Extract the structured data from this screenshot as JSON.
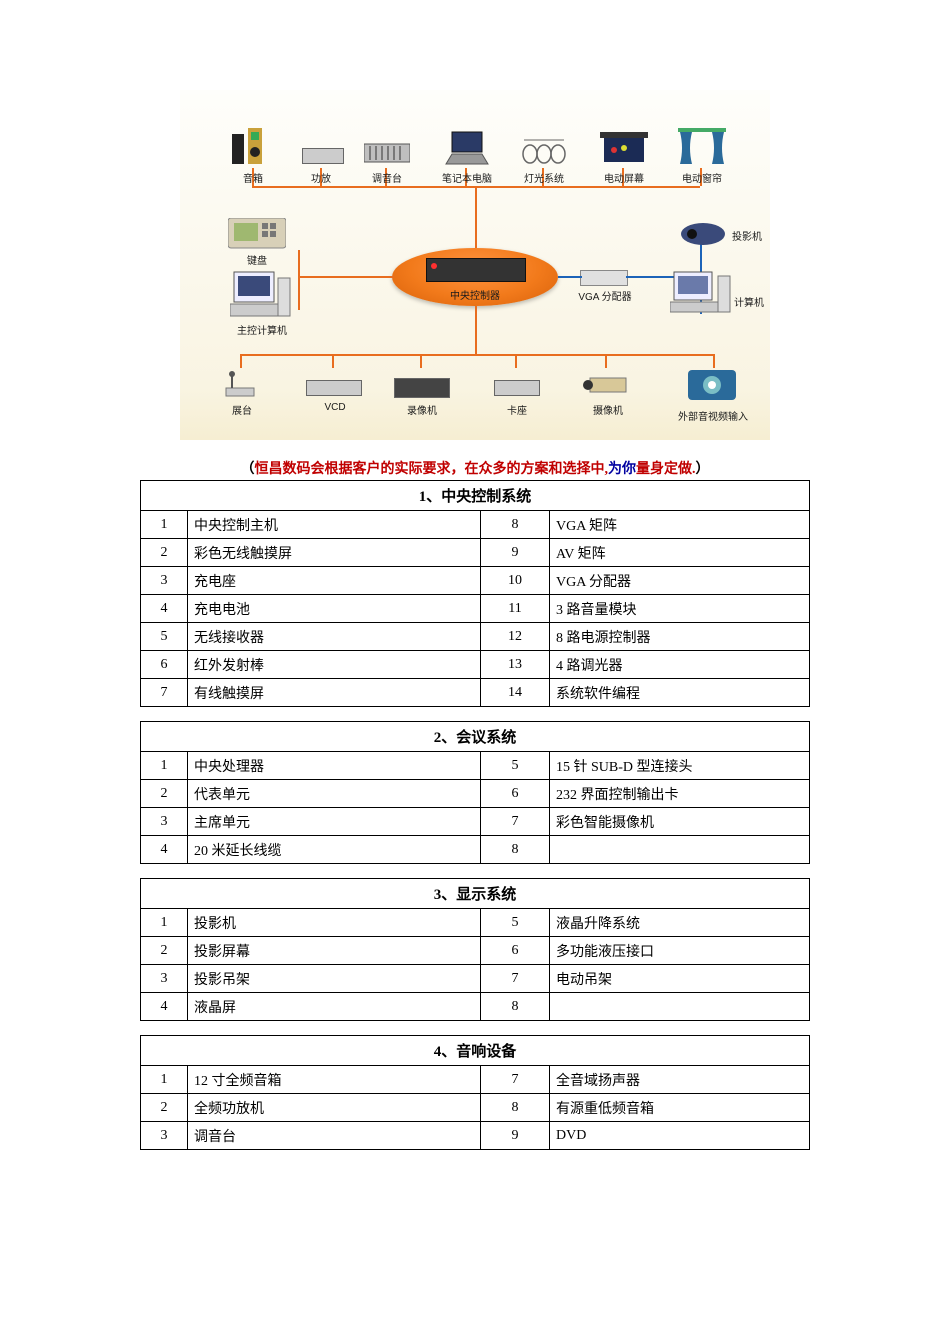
{
  "diagram": {
    "background_gradient": [
      "#fefefb",
      "#f9f4e2",
      "#f6eed2"
    ],
    "line_color_orange": "#e86d1f",
    "line_color_blue": "#1c63b8",
    "label_font_size": 10,
    "center": {
      "label": "中央控制器",
      "fill_gradient": [
        "#ff9441",
        "#f27a1b",
        "#d8610a"
      ]
    },
    "vga_label": "VGA 分配器",
    "top_row": [
      {
        "label": "音箱"
      },
      {
        "label": "功放"
      },
      {
        "label": "调音台"
      },
      {
        "label": "笔记本电脑"
      },
      {
        "label": "灯光系统"
      },
      {
        "label": "电动屏幕"
      },
      {
        "label": "电动窗帘"
      }
    ],
    "left_col": [
      {
        "label": "键盘"
      },
      {
        "label": "主控计算机"
      }
    ],
    "right_col": [
      {
        "label": "投影机"
      },
      {
        "label": "计算机"
      }
    ],
    "bottom_row": [
      {
        "label": "展台"
      },
      {
        "label": "VCD"
      },
      {
        "label": "录像机"
      },
      {
        "label": "卡座"
      },
      {
        "label": "摄像机"
      },
      {
        "label": "外部音视频输入"
      }
    ]
  },
  "slogan": {
    "open": "（",
    "red1": "恒昌数码会根据客户的实际要求，在众多的方案和选择中",
    "mid_punct": ",",
    "blue": "为你",
    "red2": "量身定做",
    "dot": ".",
    "close": "）"
  },
  "tables": {
    "cell_border_color": "#000000",
    "font_size": 14,
    "sections": [
      {
        "title": "1、中央控制系统",
        "rows": [
          [
            "1",
            "中央控制主机",
            "8",
            "VGA 矩阵"
          ],
          [
            "2",
            "彩色无线触摸屏",
            "9",
            "AV 矩阵"
          ],
          [
            "3",
            "充电座",
            "10",
            "VGA 分配器"
          ],
          [
            "4",
            "充电电池",
            "11",
            "3 路音量模块"
          ],
          [
            "5",
            "无线接收器",
            "12",
            "8 路电源控制器"
          ],
          [
            "6",
            "红外发射棒",
            "13",
            "4 路调光器"
          ],
          [
            "7",
            "有线触摸屏",
            "14",
            "系统软件编程"
          ]
        ]
      },
      {
        "title": "2、会议系统",
        "rows": [
          [
            "1",
            "中央处理器",
            "5",
            "15 针 SUB-D 型连接头"
          ],
          [
            "2",
            "代表单元",
            "6",
            "232  界面控制输出卡"
          ],
          [
            "3",
            "主席单元",
            "7",
            "彩色智能摄像机"
          ],
          [
            "4",
            "20 米延长线缆",
            "8",
            ""
          ]
        ]
      },
      {
        "title": "3、显示系统",
        "rows": [
          [
            "1",
            "投影机",
            "5",
            "液晶升降系统"
          ],
          [
            "2",
            "投影屏幕",
            "6",
            "多功能液压接口"
          ],
          [
            "3",
            "投影吊架",
            "7",
            "电动吊架"
          ],
          [
            "4",
            "液晶屏",
            "8",
            ""
          ]
        ]
      },
      {
        "title": "4、音响设备",
        "rows": [
          [
            "1",
            "12 寸全频音箱",
            "7",
            "全音域扬声器"
          ],
          [
            "2",
            "全频功放机",
            "8",
            "有源重低频音箱"
          ],
          [
            "3",
            "调音台",
            "9",
            "DVD"
          ]
        ]
      }
    ]
  }
}
